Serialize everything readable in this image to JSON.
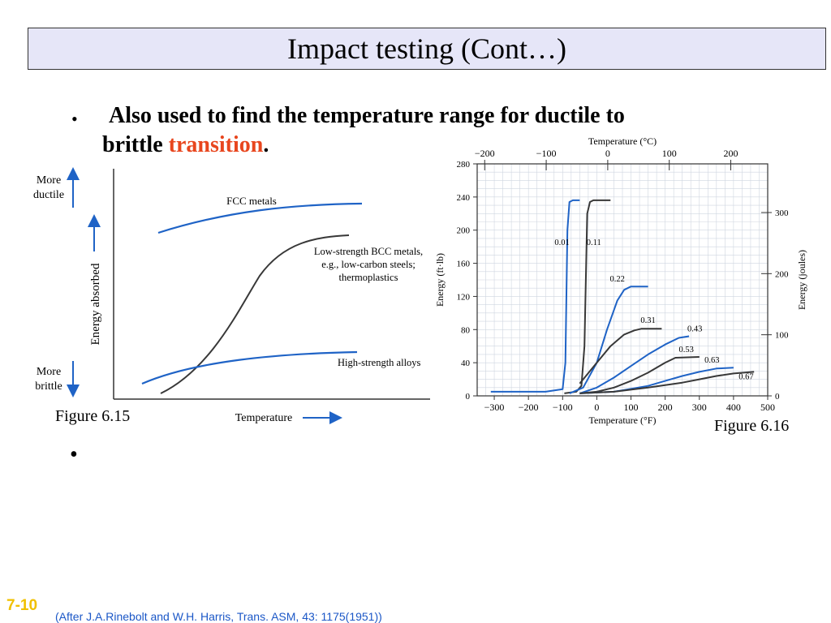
{
  "slide": {
    "title": "Impact testing (Cont…)",
    "bullet1": {
      "line1": "Also used to find the temperature range for ductile to",
      "line2_prefix": "brittle ",
      "line2_accent": "transition",
      "line2_suffix": "."
    },
    "bullet_symbol": "•",
    "bullet2_symbol": "•",
    "slide_number": "7-10",
    "citation": "(After J.A.Rinebolt and W.H. Harris, Trans. ASM, 43: 1175(1951))",
    "colors": {
      "accent": "#e8461e",
      "title_bg": "#e6e6f8",
      "curve_blue": "#1f63c6",
      "curve_dark": "#383838",
      "slide_number": "#f0c000",
      "citation": "#1b57c7"
    }
  },
  "figure1": {
    "caption": "Figure 6.15",
    "more_ductile": [
      "More",
      "ductile"
    ],
    "more_brittle": [
      "More",
      "brittle"
    ],
    "ylabel": "Energy absorbed",
    "xlabel": "Temperature",
    "labels": {
      "fcc": "FCC metals",
      "bcc": [
        "Low-strength BCC metals,",
        "e.g., low-carbon steels;",
        "thermoplastics"
      ],
      "high": "High-strength alloys"
    }
  },
  "figure2": {
    "caption": "Figure 6.16",
    "chart_data": {
      "type": "line",
      "title": "",
      "xlabel": "Temperature (°F)",
      "ylabel": "Energy (ft·lb)",
      "top_axis_label": "Temperature (°C)",
      "right_axis_label": "Energy (joules)",
      "xlim": [
        -350,
        500
      ],
      "ylim": [
        0,
        280
      ],
      "x_ticks": [
        -300,
        -200,
        -100,
        0,
        100,
        200,
        300,
        400,
        500
      ],
      "y_ticks": [
        0,
        40,
        80,
        120,
        160,
        200,
        240,
        280
      ],
      "top_ticks_C": [
        -200,
        -100,
        0,
        100,
        200
      ],
      "right_ticks_J": [
        0,
        100,
        200,
        300
      ],
      "grid": true,
      "series": [
        {
          "name": "0.01",
          "color": "blue",
          "x": [
            -310,
            -150,
            -100,
            -92,
            -86,
            -80,
            -70,
            -50
          ],
          "y": [
            5,
            5,
            8,
            40,
            200,
            234,
            236,
            236
          ]
        },
        {
          "name": "0.11",
          "color": "dark",
          "x": [
            -95,
            -60,
            -45,
            -36,
            -28,
            -20,
            -10,
            40
          ],
          "y": [
            3,
            5,
            12,
            60,
            220,
            234,
            236,
            236
          ]
        },
        {
          "name": "0.22",
          "color": "blue",
          "x": [
            -80,
            -40,
            0,
            30,
            60,
            80,
            100,
            150
          ],
          "y": [
            3,
            10,
            40,
            80,
            115,
            128,
            132,
            132
          ]
        },
        {
          "name": "0.31",
          "color": "dark",
          "x": [
            -50,
            0,
            40,
            80,
            110,
            130,
            150,
            190
          ],
          "y": [
            15,
            40,
            60,
            74,
            79,
            81,
            81,
            81
          ]
        },
        {
          "name": "0.43",
          "color": "blue",
          "x": [
            -50,
            0,
            50,
            100,
            150,
            200,
            240,
            270
          ],
          "y": [
            3,
            10,
            22,
            36,
            50,
            62,
            70,
            72
          ]
        },
        {
          "name": "0.53",
          "color": "dark",
          "x": [
            -50,
            0,
            50,
            100,
            150,
            200,
            230,
            300
          ],
          "y": [
            3,
            5,
            10,
            18,
            28,
            40,
            46,
            47
          ]
        },
        {
          "name": "0.63",
          "color": "blue",
          "x": [
            -50,
            50,
            150,
            200,
            250,
            300,
            350,
            400
          ],
          "y": [
            3,
            5,
            12,
            18,
            24,
            29,
            33,
            34
          ]
        },
        {
          "name": "0.67",
          "color": "dark",
          "x": [
            -50,
            50,
            150,
            250,
            300,
            350,
            400,
            460
          ],
          "y": [
            3,
            5,
            10,
            16,
            20,
            24,
            27,
            29
          ]
        }
      ]
    }
  }
}
